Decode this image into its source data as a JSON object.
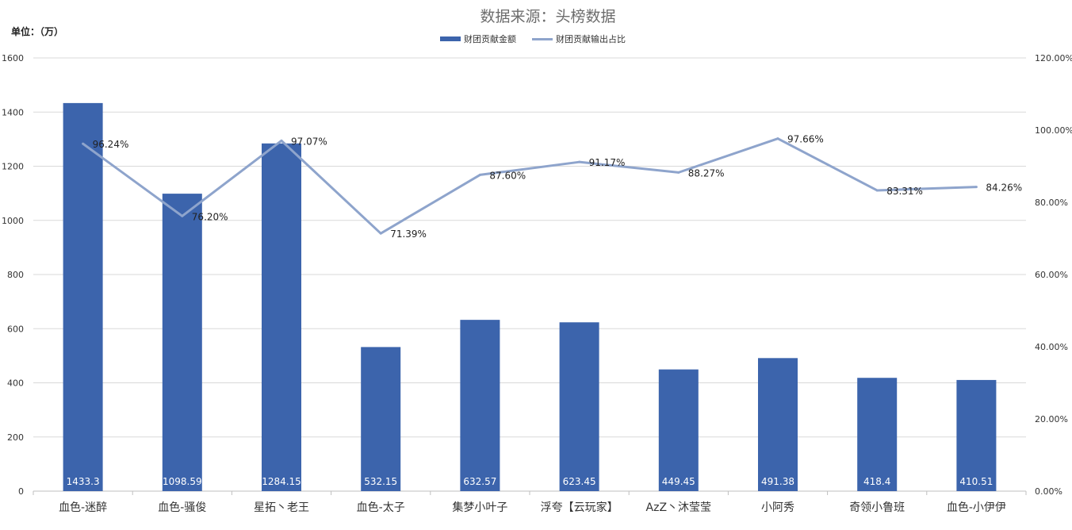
{
  "chart_data": {
    "type": "bar",
    "title": "数据来源：头榜数据",
    "unit_label": "单位：（万）",
    "categories": [
      "血色-迷醉",
      "血色-骚俊",
      "星拓丶老王",
      "血色-太子",
      "集梦小叶子",
      "浮夸【云玩家】",
      "AzZ丶沐莹莹",
      "小阿秀",
      "奇领小鲁班",
      "血色-小伊伊"
    ],
    "series": [
      {
        "name": "财团贡献金额",
        "type": "bar",
        "axis": "left",
        "color": "#3C64AC",
        "values": [
          1433.3,
          1098.59,
          1284.15,
          532.15,
          632.57,
          623.45,
          449.45,
          491.38,
          418.4,
          410.51
        ],
        "labels": [
          "1433.3",
          "1098.59",
          "1284.15",
          "532.15",
          "632.57",
          "623.45",
          "449.45",
          "491.38",
          "418.4",
          "410.51"
        ]
      },
      {
        "name": "财团贡献输出占比",
        "type": "line",
        "axis": "right",
        "color": "#8EA4CC",
        "values": [
          0.9624,
          0.762,
          0.9707,
          0.7139,
          0.876,
          0.9117,
          0.8827,
          0.9766,
          0.8331,
          0.8426
        ],
        "labels": [
          "96.24%",
          "76.20%",
          "97.07%",
          "71.39%",
          "87.60%",
          "91.17%",
          "88.27%",
          "97.66%",
          "83.31%",
          "84.26%"
        ]
      }
    ],
    "left_axis": {
      "min": 0,
      "max": 1600,
      "ticks": [
        "0",
        "200",
        "400",
        "600",
        "800",
        "1000",
        "1200",
        "1400",
        "1600"
      ]
    },
    "right_axis": {
      "min": 0,
      "max": 1.2,
      "ticks": [
        "0.00%",
        "20.00%",
        "40.00%",
        "60.00%",
        "80.00%",
        "100.00%",
        "120.00%"
      ]
    },
    "grid": true,
    "legend_position": "top"
  }
}
